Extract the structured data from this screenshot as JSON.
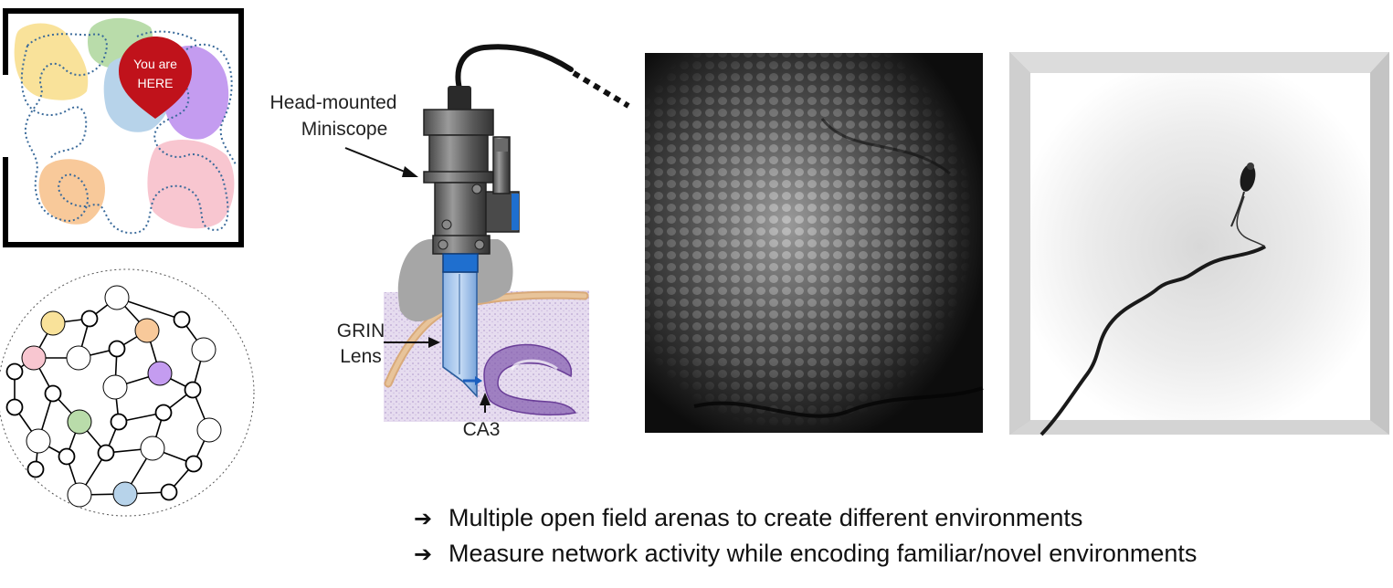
{
  "place_map": {
    "pin_line1": "You are",
    "pin_line2": "HERE",
    "field_colors": {
      "yellow": "#f9e29a",
      "green": "#b9dcaa",
      "blue": "#b7d3ea",
      "purple": "#c49cf0",
      "orange": "#f8c99a",
      "pink": "#f8c6d0",
      "pin": "#c0121b",
      "path": "#3a6a9a"
    }
  },
  "miniscope": {
    "label_miniscope_line1": "Head-mounted",
    "label_miniscope_line2": "Miniscope",
    "label_lens_line1": "GRIN",
    "label_lens_line2": "Lens",
    "label_region": "CA3"
  },
  "network": {
    "node_colors": {
      "yellow": "#f9e29a",
      "orange": "#f8c99a",
      "pink": "#f8c6d0",
      "purple": "#c49cf0",
      "green": "#b9dcaa",
      "blue": "#b7d3ea"
    }
  },
  "bullets": [
    {
      "text": "Multiple open field arenas to create different environments"
    },
    {
      "text": "Measure network activity while encoding familiar/novel environments"
    }
  ]
}
